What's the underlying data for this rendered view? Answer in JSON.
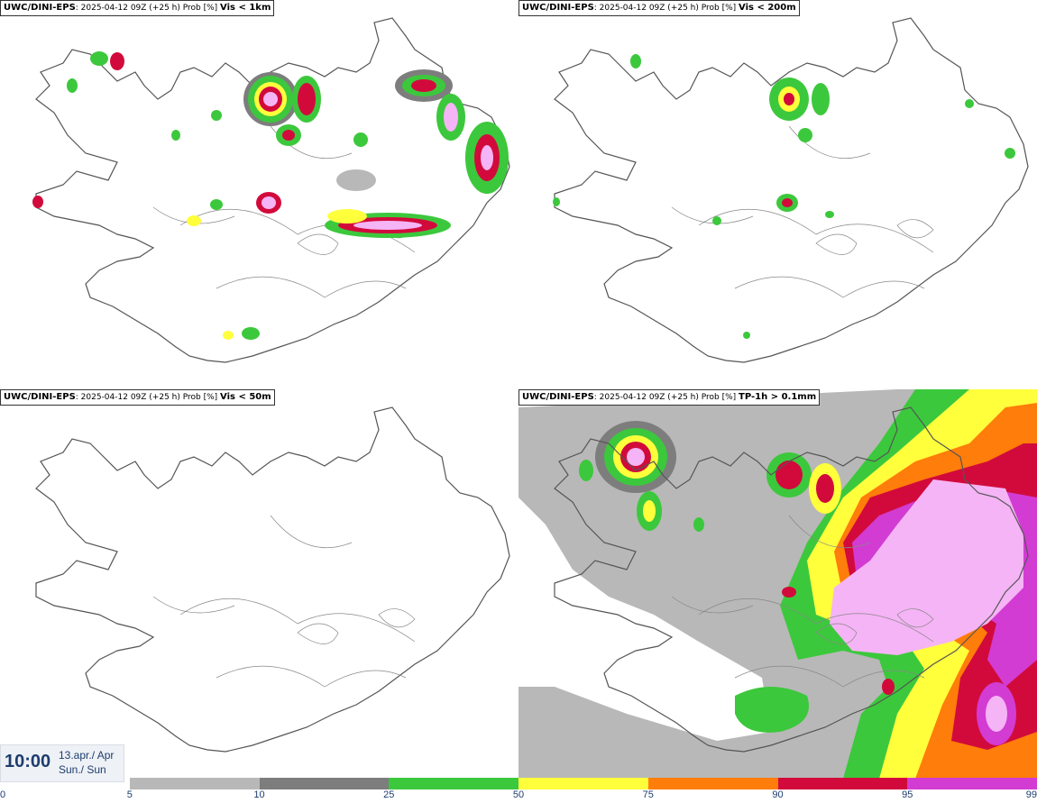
{
  "panels": [
    {
      "source": "UWC/DINI-EPS",
      "run": ": 2025-04-12 09Z (+25 h) Prob [%]",
      "variable": "Vis < 1km"
    },
    {
      "source": "UWC/DINI-EPS",
      "run": ": 2025-04-12 09Z (+25 h) Prob [%]",
      "variable": "Vis < 200m"
    },
    {
      "source": "UWC/DINI-EPS",
      "run": ": 2025-04-12 09Z (+25 h) Prob [%]",
      "variable": "Vis < 50m"
    },
    {
      "source": "UWC/DINI-EPS",
      "run": ": 2025-04-12 09Z (+25 h) Prob [%]",
      "variable": "TP-1h > 0.1mm"
    }
  ],
  "valid_time": {
    "time": "10:00",
    "date_line1": "13.apr./ Apr",
    "date_line2": "Sun./ Sun"
  },
  "colorbar": {
    "ticks": [
      "0",
      "5",
      "10",
      "25",
      "50",
      "75",
      "90",
      "95",
      "99"
    ],
    "colors": [
      "#ffffff",
      "#b8b8b8",
      "#7d7d7d",
      "#3cc83c",
      "#ffff3c",
      "#ff7d0a",
      "#d20a3c",
      "#d23cd2",
      "#f5b4f5"
    ]
  },
  "colors": {
    "title_text": "#000000",
    "time_text": "#1d3d6e",
    "coastline": "#555555"
  }
}
